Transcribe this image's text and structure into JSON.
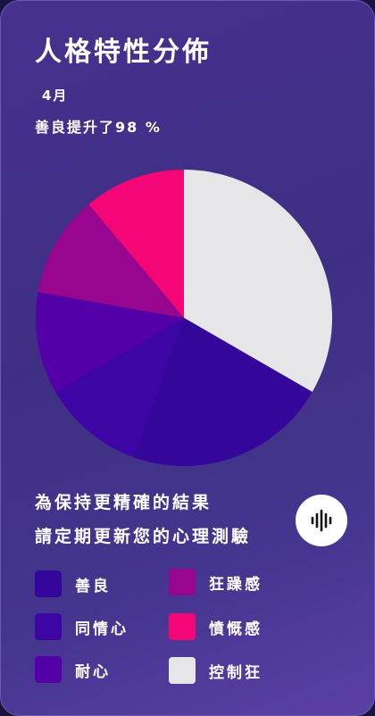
{
  "header": {
    "title": "人格特性分佈",
    "month": "4月",
    "subtitle": "善良提升了98 %"
  },
  "chart_data": {
    "type": "pie",
    "start": "12 o'clock",
    "direction": "clockwise",
    "slices": [
      {
        "label": "控制狂",
        "value": 37.5,
        "color": "#e6e6e8"
      },
      {
        "label": "善良",
        "value": 25.0,
        "color": "#35069a"
      },
      {
        "label": "同情心",
        "value": 12.5,
        "color": "#3d05a3"
      },
      {
        "label": "耐心",
        "value": 12.5,
        "color": "#5400a8"
      },
      {
        "label": "狂躁感",
        "value": 12.5,
        "color": "#98058e"
      },
      {
        "label": "憤慨感",
        "value": 12.5,
        "color": "#f40677"
      }
    ]
  },
  "note": {
    "line1": "為保持更精確的結果",
    "line2": "請定期更新您的心理測驗"
  },
  "voice_button": {
    "icon": "sound-wave-icon"
  },
  "legend": [
    {
      "label": "善良",
      "color": "#35069a"
    },
    {
      "label": "同情心",
      "color": "#3d05a3"
    },
    {
      "label": "耐心",
      "color": "#5400a8"
    },
    {
      "label": "狂躁感",
      "color": "#98058e"
    },
    {
      "label": "憤慨感",
      "color": "#f40677"
    },
    {
      "label": "控制狂",
      "color": "#e6e6e8"
    }
  ]
}
